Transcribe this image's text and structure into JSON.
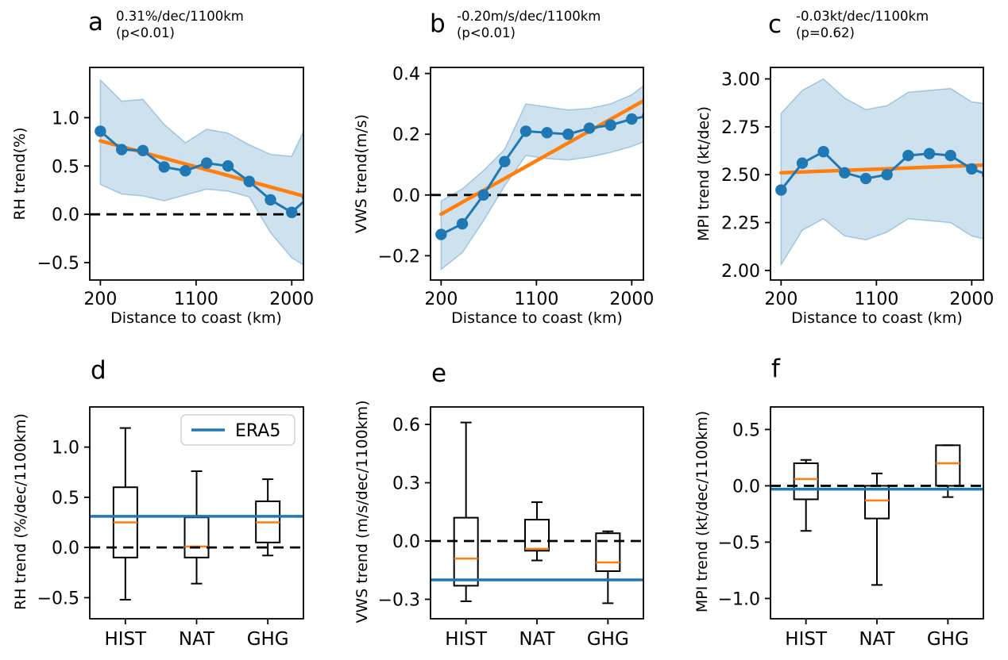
{
  "figure": {
    "colors": {
      "blue": "#1f77b4",
      "orange": "#ff7f0e",
      "band_fill": "rgba(31,119,180,0.22)",
      "band_edge": "rgba(31,119,180,0.35)",
      "black": "#000000",
      "legend_border": "#d0d0d0"
    }
  },
  "chart_data": [
    {
      "id": "a",
      "type": "line-band",
      "panel_letter": "a",
      "title_line1": "0.31%/dec/1100km",
      "title_line2": "(p<0.01)",
      "ylabel": "RH trend(%)",
      "xlabel": "Distance to coast (km)",
      "xlim": [
        100,
        2110
      ],
      "ylim": [
        -0.68,
        1.52
      ],
      "x_ticks": [
        200,
        1100,
        2000
      ],
      "x_tick_labels": [
        "200",
        "1100",
        "2000"
      ],
      "y_ticks": [
        1.0,
        0.5,
        0.0,
        -0.5
      ],
      "y_tick_labels": [
        "1.0",
        "0.5",
        "0.0",
        "−0.5"
      ],
      "zero_line": true,
      "x": [
        200,
        400,
        600,
        800,
        1000,
        1200,
        1400,
        1600,
        1800,
        2000,
        2150
      ],
      "y": [
        0.86,
        0.67,
        0.66,
        0.49,
        0.45,
        0.53,
        0.5,
        0.34,
        0.15,
        0.02,
        0.17
      ],
      "band_upper": [
        1.39,
        1.17,
        1.19,
        0.93,
        0.74,
        0.88,
        0.84,
        0.72,
        0.62,
        0.6,
        0.95
      ],
      "band_lower": [
        0.31,
        0.21,
        0.19,
        0.14,
        0.2,
        0.26,
        0.24,
        0.18,
        -0.19,
        -0.45,
        -0.55
      ],
      "trend": {
        "x": [
          200,
          2110
        ],
        "y": [
          0.76,
          0.19
        ]
      }
    },
    {
      "id": "b",
      "type": "line-band",
      "panel_letter": "b",
      "title_line1": "-0.20m/s/dec/1100km",
      "title_line2": "(p<0.01)",
      "ylabel": "VWS trend(m/s)",
      "xlabel": "Distance to coast (km)",
      "xlim": [
        100,
        2110
      ],
      "ylim": [
        -0.28,
        0.42
      ],
      "x_ticks": [
        200,
        1100,
        2000
      ],
      "x_tick_labels": [
        "200",
        "1100",
        "2000"
      ],
      "y_ticks": [
        0.4,
        0.2,
        0.0,
        -0.2
      ],
      "y_tick_labels": [
        "0.4",
        "0.2",
        "0.0",
        "−0.2"
      ],
      "zero_line": true,
      "x": [
        200,
        400,
        600,
        800,
        1000,
        1200,
        1400,
        1600,
        1800,
        2000,
        2150
      ],
      "y": [
        -0.13,
        -0.095,
        0.0,
        0.11,
        0.21,
        0.205,
        0.2,
        0.22,
        0.23,
        0.25,
        0.26
      ],
      "band_upper": [
        -0.02,
        0.02,
        0.08,
        0.15,
        0.3,
        0.29,
        0.28,
        0.285,
        0.3,
        0.33,
        0.37
      ],
      "band_lower": [
        -0.245,
        -0.19,
        -0.085,
        0.03,
        0.13,
        0.12,
        0.115,
        0.125,
        0.14,
        0.16,
        0.18
      ],
      "trend": {
        "x": [
          200,
          2110
        ],
        "y": [
          -0.063,
          0.31
        ]
      }
    },
    {
      "id": "c",
      "type": "line-band",
      "panel_letter": "c",
      "title_line1": "-0.03kt/dec/1100km",
      "title_line2": "(p=0.62)",
      "ylabel": "MPI trend (kt/dec)",
      "xlabel": "Distance to coast (km)",
      "xlim": [
        100,
        2110
      ],
      "ylim": [
        1.95,
        3.06
      ],
      "x_ticks": [
        200,
        1100,
        2000
      ],
      "x_tick_labels": [
        "200",
        "1100",
        "2000"
      ],
      "y_ticks": [
        3.0,
        2.75,
        2.5,
        2.25,
        2.0
      ],
      "y_tick_labels": [
        "3.00",
        "2.75",
        "2.50",
        "2.25",
        "2.00"
      ],
      "zero_line": false,
      "x": [
        200,
        400,
        600,
        800,
        1000,
        1200,
        1400,
        1600,
        1800,
        2000,
        2150
      ],
      "y": [
        2.42,
        2.56,
        2.62,
        2.51,
        2.48,
        2.5,
        2.6,
        2.61,
        2.6,
        2.53,
        2.5
      ],
      "band_upper": [
        2.82,
        2.94,
        3.0,
        2.9,
        2.84,
        2.86,
        2.93,
        2.94,
        2.95,
        2.88,
        2.87
      ],
      "band_lower": [
        2.03,
        2.21,
        2.27,
        2.18,
        2.16,
        2.2,
        2.27,
        2.26,
        2.25,
        2.18,
        2.16
      ],
      "trend": {
        "x": [
          200,
          2110
        ],
        "y": [
          2.51,
          2.55
        ]
      }
    },
    {
      "id": "d",
      "type": "box",
      "panel_letter": "d",
      "ylabel": "RH trend (%/dec/1100km)",
      "ylim": [
        -0.71,
        1.4
      ],
      "y_ticks": [
        1.0,
        0.5,
        0.0,
        -0.5
      ],
      "y_tick_labels": [
        "1.0",
        "0.5",
        "0.0",
        "−0.5"
      ],
      "zero_line": true,
      "categories": [
        "HIST",
        "NAT",
        "GHG"
      ],
      "boxes": [
        {
          "whisker_low": -0.52,
          "q1": -0.1,
          "median": 0.25,
          "q3": 0.6,
          "whisker_high": 1.19
        },
        {
          "whisker_low": -0.36,
          "q1": -0.1,
          "median": 0.01,
          "q3": 0.3,
          "whisker_high": 0.76
        },
        {
          "whisker_low": -0.08,
          "q1": 0.05,
          "median": 0.25,
          "q3": 0.46,
          "whisker_high": 0.68
        }
      ],
      "era5": 0.31,
      "legend": {
        "label": "ERA5"
      }
    },
    {
      "id": "e",
      "type": "box",
      "panel_letter": "e",
      "ylabel": "VWS trend (m/s/dec/1100km)",
      "ylim": [
        -0.4,
        0.69
      ],
      "y_ticks": [
        0.6,
        0.3,
        0.0,
        -0.3
      ],
      "y_tick_labels": [
        "0.6",
        "0.3",
        "0.0",
        "−0.3"
      ],
      "zero_line": true,
      "categories": [
        "HIST",
        "NAT",
        "GHG"
      ],
      "boxes": [
        {
          "whisker_low": -0.31,
          "q1": -0.23,
          "median": -0.09,
          "q3": 0.12,
          "whisker_high": 0.61
        },
        {
          "whisker_low": -0.1,
          "q1": -0.05,
          "median": -0.04,
          "q3": 0.11,
          "whisker_high": 0.2
        },
        {
          "whisker_low": -0.32,
          "q1": -0.155,
          "median": -0.11,
          "q3": 0.04,
          "whisker_high": 0.05
        }
      ],
      "era5": -0.2
    },
    {
      "id": "f",
      "type": "box",
      "panel_letter": "f",
      "ylabel": "MPI trend (kt/dec/1100km)",
      "ylim": [
        -1.18,
        0.7
      ],
      "y_ticks": [
        0.5,
        0.0,
        -0.5,
        -1.0
      ],
      "y_tick_labels": [
        "0.5",
        "0.0",
        "−0.5",
        "−1.0"
      ],
      "zero_line": true,
      "categories": [
        "HIST",
        "NAT",
        "GHG"
      ],
      "boxes": [
        {
          "whisker_low": -0.4,
          "q1": -0.12,
          "median": 0.06,
          "q3": 0.2,
          "whisker_high": 0.23
        },
        {
          "whisker_low": -0.88,
          "q1": -0.29,
          "median": -0.13,
          "q3": 0.0,
          "whisker_high": 0.11
        },
        {
          "whisker_low": -0.1,
          "q1": 0.0,
          "median": 0.2,
          "q3": 0.36,
          "whisker_high": 0.36
        }
      ],
      "era5": -0.03
    }
  ]
}
